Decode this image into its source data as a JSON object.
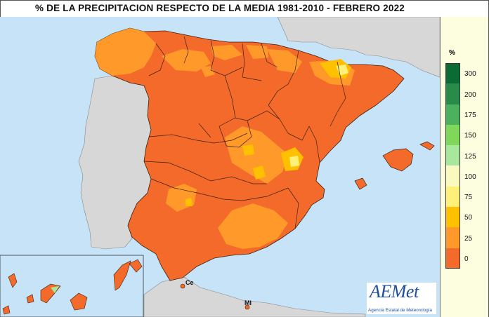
{
  "title": "% DE LA PRECIPITACION RESPECTO DE LA MEDIA 1981-2010  - FEBRERO 2022",
  "legend": {
    "unit": "%",
    "ticks": [
      "300",
      "200",
      "175",
      "150",
      "125",
      "100",
      "75",
      "50",
      "25",
      "0"
    ],
    "colors": [
      "#0c6b34",
      "#2a8a4a",
      "#4cb15d",
      "#7fd85a",
      "#a8e89c",
      "#fafabe",
      "#fff07a",
      "#ffc000",
      "#ff9a2a",
      "#f46a2a"
    ]
  },
  "map_labels": {
    "ceuta": "Ce",
    "melilla": "Ml"
  },
  "logo": {
    "name": "AEMet",
    "subtitle": "Agencia Estatal de Meteorología"
  },
  "colors": {
    "sea": "#c6e3f8",
    "land_foreign": "#d7d7d7",
    "dominant_fill": "#f46a2a",
    "region_border": "#3b2010"
  }
}
